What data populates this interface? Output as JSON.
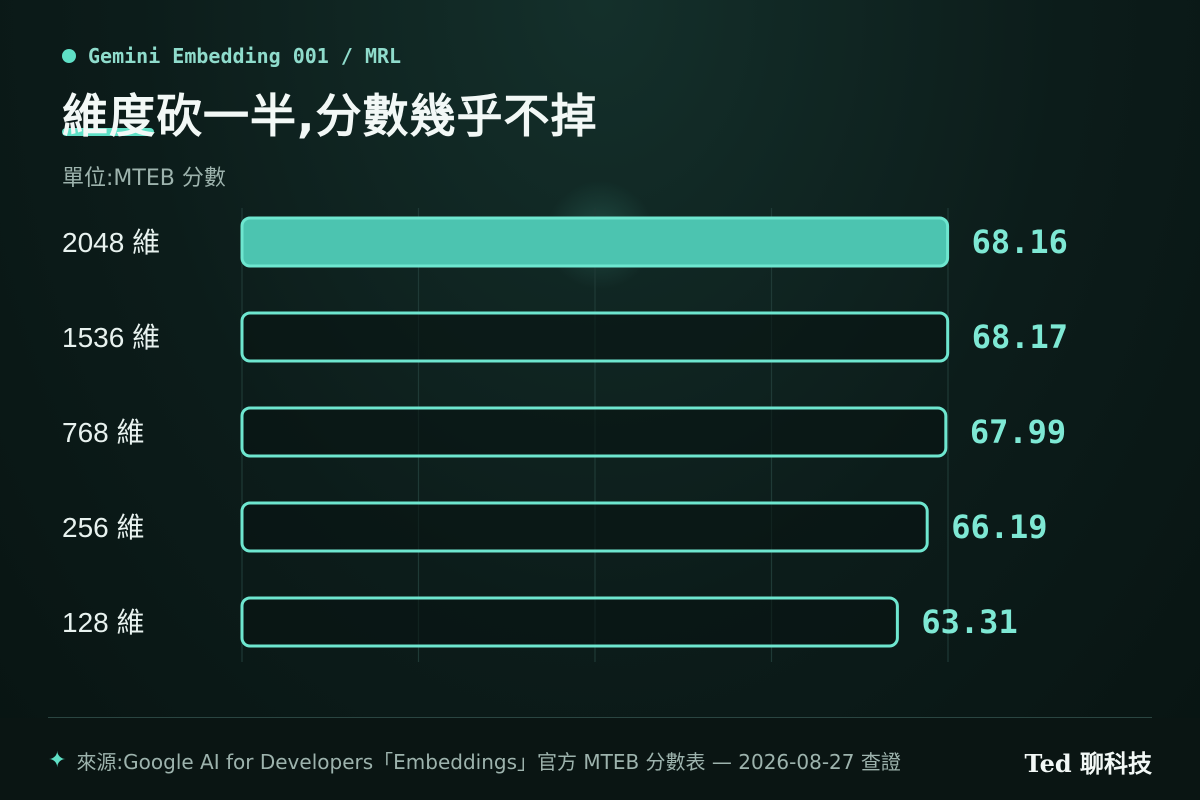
{
  "header": {
    "kicker": "Gemini Embedding 001 / MRL",
    "title": "維度砍一半,分數幾乎不掉",
    "subtitle": "單位:MTEB 分數"
  },
  "chart_data": {
    "type": "bar",
    "orientation": "horizontal",
    "categories": [
      "2048 維",
      "1536 維",
      "768 維",
      "256 維",
      "128 維"
    ],
    "values": [
      68.16,
      68.17,
      67.99,
      66.19,
      63.31
    ],
    "value_labels": [
      "68.16",
      "68.17",
      "67.99",
      "66.19",
      "63.31"
    ],
    "highlight_index": 0,
    "xlim": [
      0,
      68.2
    ],
    "grid": true,
    "colors": {
      "accent": "#5fe0c6",
      "highlight_fill": "#4cc4b0",
      "bar_outline": "#6ee6cf",
      "value_text": "#7ee8d4",
      "grid": "#1f3a36"
    }
  },
  "footer": {
    "icon": "sparkle-icon",
    "source": "來源:Google AI for Developers「Embeddings」官方 MTEB 分數表 — 2026-08-27 查證",
    "brand": "Ted 聊科技"
  }
}
